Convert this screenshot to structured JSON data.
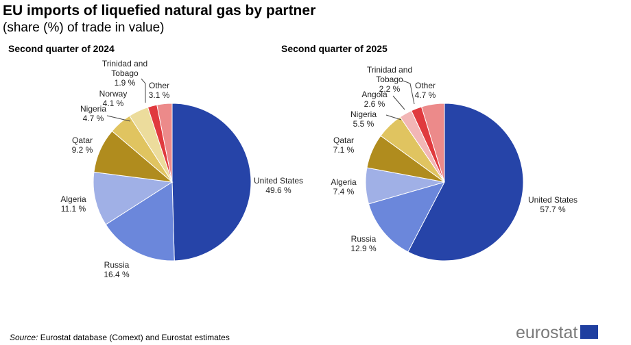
{
  "title": "EU imports of liquefied natural gas by partner",
  "subtitle": "(share (%) of trade in value)",
  "source_label": "Source:",
  "source_text": " Eurostat database (Comext) and Eurostat estimates",
  "logo_text": "eurostat",
  "chart_data": [
    {
      "type": "pie",
      "title": "Second quarter of 2024",
      "categories": [
        "United States",
        "Russia",
        "Algeria",
        "Qatar",
        "Nigeria",
        "Norway",
        "Trinidad and Tobago",
        "Other"
      ],
      "values": [
        49.6,
        16.4,
        11.1,
        9.2,
        4.7,
        4.1,
        1.9,
        3.1
      ],
      "labels": [
        "United States\n49.6 %",
        "Russia\n16.4 %",
        "Algeria\n11.1 %",
        "Qatar\n9.2 %",
        "Nigeria\n4.7 %",
        "Norway\n4.1 %",
        "Trinidad and\nTobago\n1.9 %",
        "Other\n3.1 %"
      ],
      "colors": [
        "#2644a8",
        "#6b87db",
        "#a0b0e6",
        "#b08c1e",
        "#e0c460",
        "#ecdc9c",
        "#e03a3e",
        "#ec8a8a"
      ]
    },
    {
      "type": "pie",
      "title": "Second quarter of 2025",
      "categories": [
        "United States",
        "Russia",
        "Algeria",
        "Qatar",
        "Nigeria",
        "Angola",
        "Trinidad and Tobago",
        "Other"
      ],
      "values": [
        57.7,
        12.9,
        7.4,
        7.1,
        5.5,
        2.6,
        2.2,
        4.7
      ],
      "labels": [
        "United States\n57.7 %",
        "Russia\n12.9 %",
        "Algeria\n7.4 %",
        "Qatar\n7.1 %",
        "Nigeria\n5.5 %",
        "Angola\n2.6 %",
        "Trinidad and\nTobago\n2.2 %",
        "Other\n4.7 %"
      ],
      "colors": [
        "#2644a8",
        "#6b87db",
        "#a0b0e6",
        "#b08c1e",
        "#e0c460",
        "#f2b6b6",
        "#e03a3e",
        "#ec8a8a"
      ]
    }
  ]
}
